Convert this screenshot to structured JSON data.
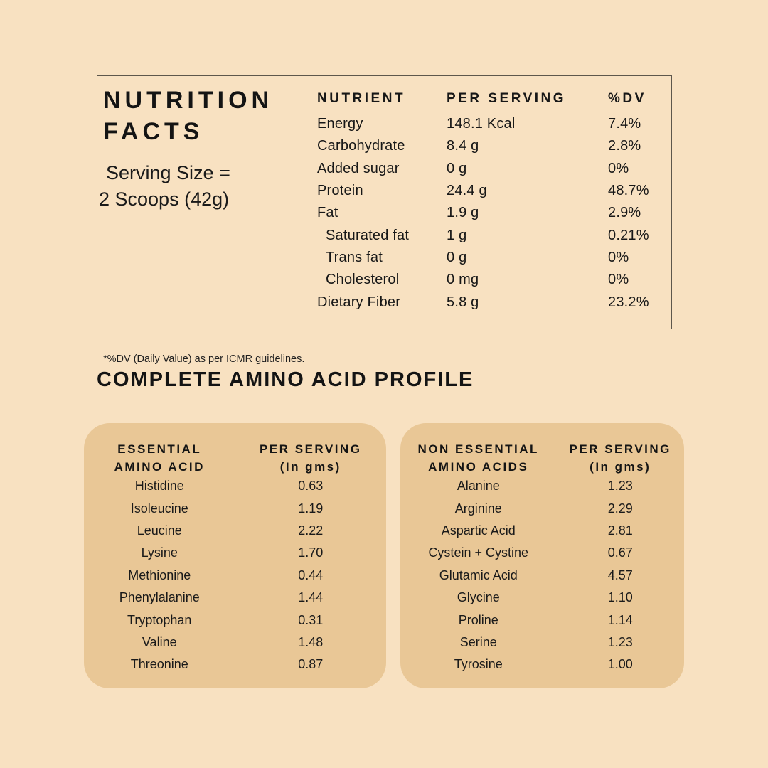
{
  "page": {
    "background_color": "#F8E1C1",
    "panel_color": "#E9C796",
    "text_color": "#171717",
    "panel_border_color": "#5E574C"
  },
  "nutrition_panel": {
    "title_line1": "NUTRITION",
    "title_line2": "FACTS",
    "serving_line1": "Serving Size =",
    "serving_line2": "2 Scoops (42g)",
    "footnote": "*%DV (Daily Value) as per ICMR guidelines.",
    "table": {
      "col_nutrient": "NUTRIENT",
      "col_per_serving": "PER SERVING",
      "col_dv": "%DV",
      "rows": [
        {
          "nutrient": "Energy",
          "amount": "148.1 Kcal",
          "dv": "7.4%"
        },
        {
          "nutrient": "Carbohydrate",
          "amount": "8.4 g",
          "dv": "2.8%"
        },
        {
          "nutrient": "Added sugar",
          "amount": "0 g",
          "dv": "0%"
        },
        {
          "nutrient": "Protein",
          "amount": "24.4 g",
          "dv": "48.7%"
        },
        {
          "nutrient": "Fat",
          "amount": "1.9 g",
          "dv": "2.9%"
        },
        {
          "nutrient": "Saturated fat",
          "amount": "1 g",
          "dv": "0.21%"
        },
        {
          "nutrient": "Trans fat",
          "amount": "0 g",
          "dv": "0%"
        },
        {
          "nutrient": "Cholesterol",
          "amount": "0 mg",
          "dv": "0%"
        },
        {
          "nutrient": "Dietary Fiber",
          "amount": "5.8 g",
          "dv": "23.2%"
        }
      ]
    }
  },
  "amino_profile": {
    "heading": "COMPLETE AMINO ACID PROFILE",
    "essential": {
      "name_header_line1": "ESSENTIAL",
      "name_header_line2": "AMINO ACID",
      "value_header_line1": "PER SERVING",
      "value_header_line2": "(In gms)",
      "rows": [
        {
          "name": "Histidine",
          "value": "0.63"
        },
        {
          "name": "Isoleucine",
          "value": "1.19"
        },
        {
          "name": "Leucine",
          "value": "2.22"
        },
        {
          "name": "Lysine",
          "value": "1.70"
        },
        {
          "name": "Methionine",
          "value": "0.44"
        },
        {
          "name": "Phenylalanine",
          "value": "1.44"
        },
        {
          "name": "Tryptophan",
          "value": "0.31"
        },
        {
          "name": "Valine",
          "value": "1.48"
        },
        {
          "name": "Threonine",
          "value": "0.87"
        }
      ]
    },
    "non_essential": {
      "name_header_line1": "NON ESSENTIAL",
      "name_header_line2": "AMINO ACIDS",
      "value_header_line1": "PER SERVING",
      "value_header_line2": "(In gms)",
      "rows": [
        {
          "name": "Alanine",
          "value": "1.23"
        },
        {
          "name": "Arginine",
          "value": "2.29"
        },
        {
          "name": "Aspartic Acid",
          "value": "2.81"
        },
        {
          "name": "Cystein + Cystine",
          "value": "0.67"
        },
        {
          "name": "Glutamic Acid",
          "value": "4.57"
        },
        {
          "name": "Glycine",
          "value": "1.10"
        },
        {
          "name": "Proline",
          "value": "1.14"
        },
        {
          "name": "Serine",
          "value": "1.23"
        },
        {
          "name": "Tyrosine",
          "value": "1.00"
        }
      ]
    }
  }
}
